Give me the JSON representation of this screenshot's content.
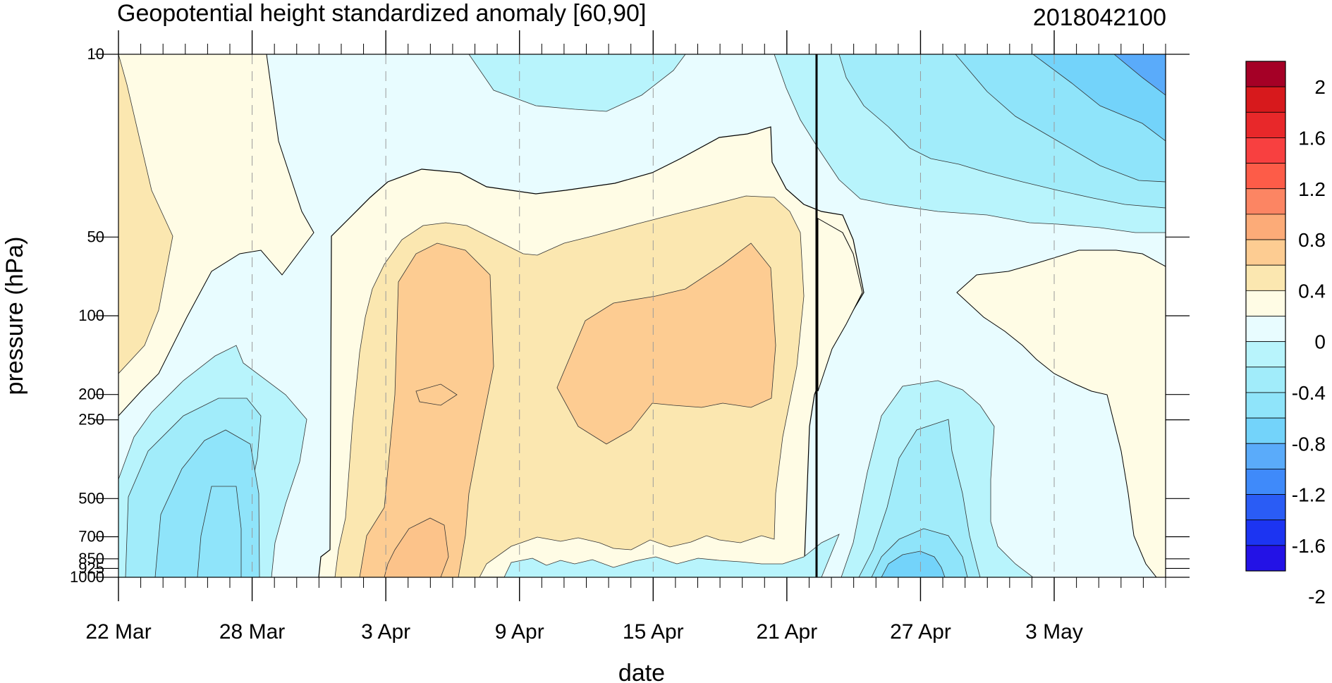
{
  "chart_data": {
    "type": "heatmap",
    "title": "Geopotential height standardized anomaly [60,90]",
    "date_stamp": "2018042100",
    "xlabel": "date",
    "ylabel": "pressure (hPa)",
    "x_start": "22 Mar",
    "x_end": "8 May",
    "x_tick_labels": [
      "22 Mar",
      "28 Mar",
      "3 Apr",
      "9 Apr",
      "15 Apr",
      "21 Apr",
      "27 Apr",
      "3 May"
    ],
    "marked_date": "21 Apr",
    "y_scale": "log",
    "y_reversed": true,
    "ylim": [
      10,
      1000
    ],
    "y_ticks": [
      "10",
      "50",
      "100",
      "200",
      "250",
      "500",
      "700",
      "850",
      "925",
      "1000"
    ],
    "colorbar": {
      "tick_labels": [
        "2",
        "1.6",
        "1.2",
        "0.8",
        "0.4",
        "0",
        "-0.4",
        "-0.8",
        "-1.2",
        "-1.6",
        "-2"
      ],
      "levels": [
        2.0,
        1.8,
        1.6,
        1.4,
        1.2,
        1.0,
        0.8,
        0.6,
        0.4,
        0.2,
        0.0,
        -0.2,
        -0.4,
        -0.6,
        -0.8,
        -1.0,
        -1.2,
        -1.4,
        -1.6,
        -1.8,
        -2.0
      ],
      "colors": [
        "#a50026",
        "#d7191c",
        "#e8282a",
        "#f84040",
        "#fd5c48",
        "#fc8563",
        "#fcab78",
        "#fdcc92",
        "#fbe7b0",
        "#fffce5",
        "#e8fcff",
        "#b8f4fc",
        "#a1ecfa",
        "#8fe4fa",
        "#73d3fa",
        "#5aabfa",
        "#3f8afa",
        "#2a5cf5",
        "#1c34f2",
        "#2312e6"
      ]
    },
    "anomaly_regions": [
      {
        "period": "22 Mar – 24 Mar",
        "levels": "10–150 hPa",
        "value": 0.4
      },
      {
        "period": "24 Mar – 31 Mar",
        "levels": "10–50 hPa",
        "value": 0.0
      },
      {
        "period": "24 Mar – 30 Mar",
        "levels": "200–1000 hPa",
        "value": -0.8
      },
      {
        "period": "25 Mar – 28 Mar",
        "levels": "450–1000 hPa",
        "value": -0.8
      },
      {
        "period": "2 Apr – 8 Apr",
        "levels": "80–1000 hPa",
        "value": 0.6
      },
      {
        "period": "11 Apr – 18 Apr",
        "levels": "55–300 hPa",
        "value": 0.6
      },
      {
        "period": "5 Apr – 14 Apr",
        "levels": "10–16 hPa",
        "value": -0.2
      },
      {
        "period": "21 Apr – 8 May",
        "levels": "10–45 hPa",
        "value": -0.6
      },
      {
        "period": "4 May – 8 May",
        "levels": "10–20 hPa",
        "value": -1.0
      },
      {
        "period": "27 Apr – 8 May",
        "levels": "70–1000 hPa",
        "value": 0.0
      },
      {
        "period": "23 Apr – 28 Apr",
        "levels": "160–1000 hPa",
        "value": -0.4
      },
      {
        "period": "24 Apr – 27 Apr",
        "levels": "850–1000 hPa",
        "value": -0.8
      }
    ]
  }
}
